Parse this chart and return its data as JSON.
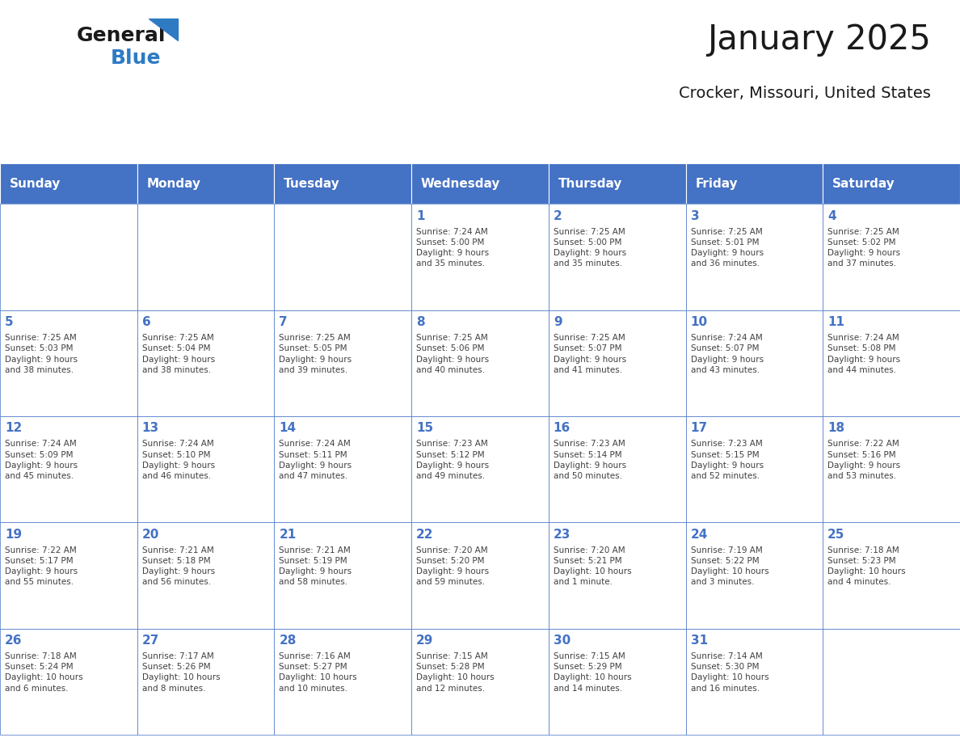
{
  "title": "January 2025",
  "subtitle": "Crocker, Missouri, United States",
  "days_of_week": [
    "Sunday",
    "Monday",
    "Tuesday",
    "Wednesday",
    "Thursday",
    "Friday",
    "Saturday"
  ],
  "header_bg": "#4472C4",
  "header_text": "#FFFFFF",
  "cell_bg_light": "#FFFFFF",
  "cell_bg_dark": "#F2F2F2",
  "border_color": "#4472C4",
  "day_number_color": "#4472C4",
  "cell_text_color": "#404040",
  "title_color": "#1a1a1a",
  "logo_general_color": "#1a1a1a",
  "logo_blue_color": "#2E7BC4",
  "weeks": [
    [
      {
        "day": null,
        "info": null
      },
      {
        "day": null,
        "info": null
      },
      {
        "day": null,
        "info": null
      },
      {
        "day": 1,
        "info": "Sunrise: 7:24 AM\nSunset: 5:00 PM\nDaylight: 9 hours\nand 35 minutes."
      },
      {
        "day": 2,
        "info": "Sunrise: 7:25 AM\nSunset: 5:00 PM\nDaylight: 9 hours\nand 35 minutes."
      },
      {
        "day": 3,
        "info": "Sunrise: 7:25 AM\nSunset: 5:01 PM\nDaylight: 9 hours\nand 36 minutes."
      },
      {
        "day": 4,
        "info": "Sunrise: 7:25 AM\nSunset: 5:02 PM\nDaylight: 9 hours\nand 37 minutes."
      }
    ],
    [
      {
        "day": 5,
        "info": "Sunrise: 7:25 AM\nSunset: 5:03 PM\nDaylight: 9 hours\nand 38 minutes."
      },
      {
        "day": 6,
        "info": "Sunrise: 7:25 AM\nSunset: 5:04 PM\nDaylight: 9 hours\nand 38 minutes."
      },
      {
        "day": 7,
        "info": "Sunrise: 7:25 AM\nSunset: 5:05 PM\nDaylight: 9 hours\nand 39 minutes."
      },
      {
        "day": 8,
        "info": "Sunrise: 7:25 AM\nSunset: 5:06 PM\nDaylight: 9 hours\nand 40 minutes."
      },
      {
        "day": 9,
        "info": "Sunrise: 7:25 AM\nSunset: 5:07 PM\nDaylight: 9 hours\nand 41 minutes."
      },
      {
        "day": 10,
        "info": "Sunrise: 7:24 AM\nSunset: 5:07 PM\nDaylight: 9 hours\nand 43 minutes."
      },
      {
        "day": 11,
        "info": "Sunrise: 7:24 AM\nSunset: 5:08 PM\nDaylight: 9 hours\nand 44 minutes."
      }
    ],
    [
      {
        "day": 12,
        "info": "Sunrise: 7:24 AM\nSunset: 5:09 PM\nDaylight: 9 hours\nand 45 minutes."
      },
      {
        "day": 13,
        "info": "Sunrise: 7:24 AM\nSunset: 5:10 PM\nDaylight: 9 hours\nand 46 minutes."
      },
      {
        "day": 14,
        "info": "Sunrise: 7:24 AM\nSunset: 5:11 PM\nDaylight: 9 hours\nand 47 minutes."
      },
      {
        "day": 15,
        "info": "Sunrise: 7:23 AM\nSunset: 5:12 PM\nDaylight: 9 hours\nand 49 minutes."
      },
      {
        "day": 16,
        "info": "Sunrise: 7:23 AM\nSunset: 5:14 PM\nDaylight: 9 hours\nand 50 minutes."
      },
      {
        "day": 17,
        "info": "Sunrise: 7:23 AM\nSunset: 5:15 PM\nDaylight: 9 hours\nand 52 minutes."
      },
      {
        "day": 18,
        "info": "Sunrise: 7:22 AM\nSunset: 5:16 PM\nDaylight: 9 hours\nand 53 minutes."
      }
    ],
    [
      {
        "day": 19,
        "info": "Sunrise: 7:22 AM\nSunset: 5:17 PM\nDaylight: 9 hours\nand 55 minutes."
      },
      {
        "day": 20,
        "info": "Sunrise: 7:21 AM\nSunset: 5:18 PM\nDaylight: 9 hours\nand 56 minutes."
      },
      {
        "day": 21,
        "info": "Sunrise: 7:21 AM\nSunset: 5:19 PM\nDaylight: 9 hours\nand 58 minutes."
      },
      {
        "day": 22,
        "info": "Sunrise: 7:20 AM\nSunset: 5:20 PM\nDaylight: 9 hours\nand 59 minutes."
      },
      {
        "day": 23,
        "info": "Sunrise: 7:20 AM\nSunset: 5:21 PM\nDaylight: 10 hours\nand 1 minute."
      },
      {
        "day": 24,
        "info": "Sunrise: 7:19 AM\nSunset: 5:22 PM\nDaylight: 10 hours\nand 3 minutes."
      },
      {
        "day": 25,
        "info": "Sunrise: 7:18 AM\nSunset: 5:23 PM\nDaylight: 10 hours\nand 4 minutes."
      }
    ],
    [
      {
        "day": 26,
        "info": "Sunrise: 7:18 AM\nSunset: 5:24 PM\nDaylight: 10 hours\nand 6 minutes."
      },
      {
        "day": 27,
        "info": "Sunrise: 7:17 AM\nSunset: 5:26 PM\nDaylight: 10 hours\nand 8 minutes."
      },
      {
        "day": 28,
        "info": "Sunrise: 7:16 AM\nSunset: 5:27 PM\nDaylight: 10 hours\nand 10 minutes."
      },
      {
        "day": 29,
        "info": "Sunrise: 7:15 AM\nSunset: 5:28 PM\nDaylight: 10 hours\nand 12 minutes."
      },
      {
        "day": 30,
        "info": "Sunrise: 7:15 AM\nSunset: 5:29 PM\nDaylight: 10 hours\nand 14 minutes."
      },
      {
        "day": 31,
        "info": "Sunrise: 7:14 AM\nSunset: 5:30 PM\nDaylight: 10 hours\nand 16 minutes."
      },
      {
        "day": null,
        "info": null
      }
    ]
  ]
}
